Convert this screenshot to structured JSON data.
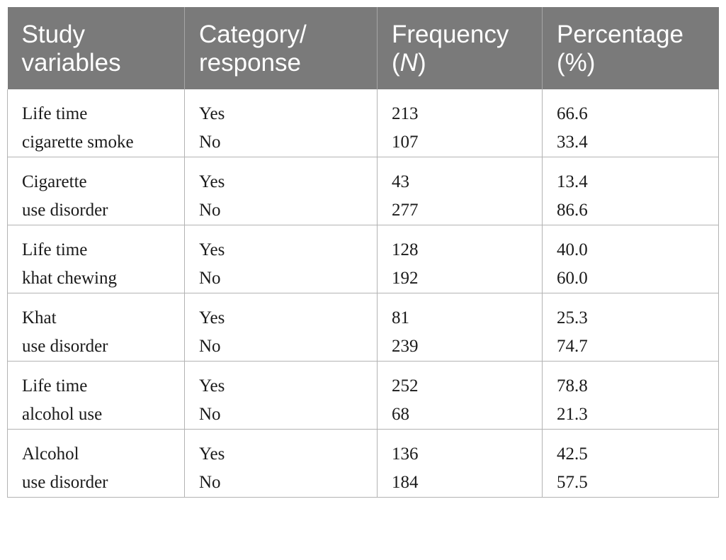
{
  "header": {
    "col1": {
      "line1": "Study",
      "line2": "variables"
    },
    "col2": {
      "line1": "Category/",
      "line2": "response"
    },
    "col3": {
      "line1": "Frequency",
      "line2_open": "(",
      "line2_italic": "N",
      "line2_close": ")"
    },
    "col4": {
      "line1": "Percentage",
      "line2": "(%)"
    }
  },
  "rows": [
    {
      "variable": [
        "Life time",
        "cigarette smoke"
      ],
      "responses": [
        "Yes",
        "No"
      ],
      "frequency": [
        "213",
        "107"
      ],
      "percentage": [
        "66.6",
        "33.4"
      ]
    },
    {
      "variable": [
        "Cigarette",
        "use disorder"
      ],
      "responses": [
        "Yes",
        "No"
      ],
      "frequency": [
        "43",
        "277"
      ],
      "percentage": [
        "13.4",
        "86.6"
      ]
    },
    {
      "variable": [
        "Life time",
        "khat chewing"
      ],
      "responses": [
        "Yes",
        "No"
      ],
      "frequency": [
        "128",
        "192"
      ],
      "percentage": [
        "40.0",
        "60.0"
      ]
    },
    {
      "variable": [
        "Khat",
        "use disorder"
      ],
      "responses": [
        "Yes",
        "No"
      ],
      "frequency": [
        "81",
        "239"
      ],
      "percentage": [
        "25.3",
        "74.7"
      ]
    },
    {
      "variable": [
        "Life time",
        "alcohol use"
      ],
      "responses": [
        "Yes",
        "No"
      ],
      "frequency": [
        "252",
        "68"
      ],
      "percentage": [
        "78.8",
        "21.3"
      ]
    },
    {
      "variable": [
        "Alcohol",
        "use disorder"
      ],
      "responses": [
        "Yes",
        "No"
      ],
      "frequency": [
        "136",
        "184"
      ],
      "percentage": [
        "42.5",
        "57.5"
      ]
    }
  ],
  "colors": {
    "header_background": "#7a7a7a",
    "header_text": "#ffffff",
    "border": "#b3b3b3"
  }
}
